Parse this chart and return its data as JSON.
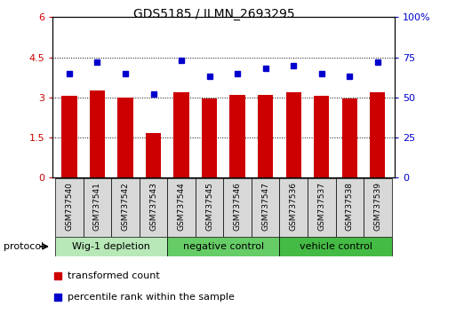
{
  "title": "GDS5185 / ILMN_2693295",
  "samples": [
    "GSM737540",
    "GSM737541",
    "GSM737542",
    "GSM737543",
    "GSM737544",
    "GSM737545",
    "GSM737546",
    "GSM737547",
    "GSM737536",
    "GSM737537",
    "GSM737538",
    "GSM737539"
  ],
  "bar_values": [
    3.05,
    3.25,
    3.0,
    1.65,
    3.2,
    2.95,
    3.1,
    3.1,
    3.2,
    3.05,
    2.95,
    3.2
  ],
  "percentile_values": [
    65,
    72,
    65,
    52,
    73,
    63,
    65,
    68,
    70,
    65,
    63,
    72
  ],
  "ylim_left": [
    0,
    6
  ],
  "ylim_right": [
    0,
    100
  ],
  "yticks_left": [
    0,
    1.5,
    3.0,
    4.5,
    6.0
  ],
  "ytick_labels_left": [
    "0",
    "1.5",
    "3",
    "4.5",
    "6"
  ],
  "yticks_right": [
    0,
    25,
    50,
    75,
    100
  ],
  "ytick_labels_right": [
    "0",
    "25",
    "50",
    "75",
    "100%"
  ],
  "bar_color": "#cc0000",
  "dot_color": "#0000cc",
  "grid_color": "#000000",
  "groups": [
    {
      "label": "Wig-1 depletion",
      "start": 0,
      "end": 4,
      "color": "#b8e8b8"
    },
    {
      "label": "negative control",
      "start": 4,
      "end": 8,
      "color": "#66cc66"
    },
    {
      "label": "vehicle control",
      "start": 8,
      "end": 12,
      "color": "#44bb44"
    }
  ],
  "protocol_label": "protocol",
  "legend_bar_label": "transformed count",
  "legend_dot_label": "percentile rank within the sample",
  "tick_label_color_left": "#cc0000",
  "tick_label_color_right": "#0000cc",
  "sample_box_color": "#d8d8d8"
}
